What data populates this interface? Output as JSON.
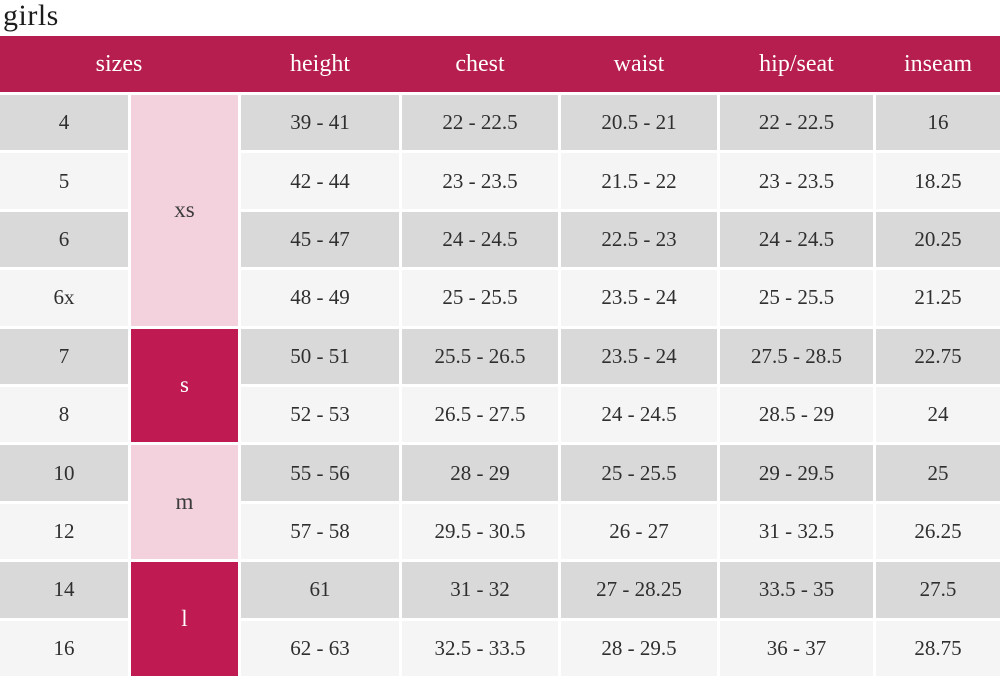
{
  "page_title": "girls",
  "colors": {
    "header_bg": "#b51e4e",
    "group_crimson_bg": "#bf1a51",
    "group_pink_bg": "#f4d2dd",
    "row_gray_bg": "#d9d9d9",
    "row_light_bg": "#f5f5f5",
    "header_text": "#ffffff",
    "body_text": "#2f2f2f",
    "page_bg": "#ffffff"
  },
  "chart_data": {
    "type": "table",
    "title": "girls",
    "header_labels": [
      "sizes",
      "height",
      "chest",
      "waist",
      "hip/seat",
      "inseam"
    ],
    "size_groups": [
      {
        "label": "xs",
        "sizes_spanned": [
          "4",
          "5",
          "6",
          "6x"
        ]
      },
      {
        "label": "s",
        "sizes_spanned": [
          "7",
          "8"
        ]
      },
      {
        "label": "m",
        "sizes_spanned": [
          "10",
          "12"
        ]
      },
      {
        "label": "l",
        "sizes_spanned": [
          "14",
          "16"
        ]
      }
    ],
    "rows": [
      {
        "size": "4",
        "height": "39 - 41",
        "chest": "22 - 22.5",
        "waist": "20.5 - 21",
        "hip_seat": "22 - 22.5",
        "inseam": "16"
      },
      {
        "size": "5",
        "height": "42 - 44",
        "chest": "23 - 23.5",
        "waist": "21.5 - 22",
        "hip_seat": "23 - 23.5",
        "inseam": "18.25"
      },
      {
        "size": "6",
        "height": "45 - 47",
        "chest": "24 - 24.5",
        "waist": "22.5 - 23",
        "hip_seat": "24 - 24.5",
        "inseam": "20.25"
      },
      {
        "size": "6x",
        "height": "48 - 49",
        "chest": "25 - 25.5",
        "waist": "23.5 - 24",
        "hip_seat": "25 - 25.5",
        "inseam": "21.25"
      },
      {
        "size": "7",
        "height": "50 - 51",
        "chest": "25.5 - 26.5",
        "waist": "23.5 - 24",
        "hip_seat": "27.5 - 28.5",
        "inseam": "22.75"
      },
      {
        "size": "8",
        "height": "52 - 53",
        "chest": "26.5 - 27.5",
        "waist": "24 - 24.5",
        "hip_seat": "28.5 - 29",
        "inseam": "24"
      },
      {
        "size": "10",
        "height": "55 - 56",
        "chest": "28 - 29",
        "waist": "25 - 25.5",
        "hip_seat": "29 - 29.5",
        "inseam": "25"
      },
      {
        "size": "12",
        "height": "57 - 58",
        "chest": "29.5 - 30.5",
        "waist": "26 - 27",
        "hip_seat": "31 - 32.5",
        "inseam": "26.25"
      },
      {
        "size": "14",
        "height": "61",
        "chest": "31 - 32",
        "waist": "27 - 28.25",
        "hip_seat": "33.5 - 35",
        "inseam": "27.5"
      },
      {
        "size": "16",
        "height": "62 - 63",
        "chest": "32.5 - 33.5",
        "waist": "28 - 29.5",
        "hip_seat": "36 - 37",
        "inseam": "28.75"
      }
    ]
  }
}
